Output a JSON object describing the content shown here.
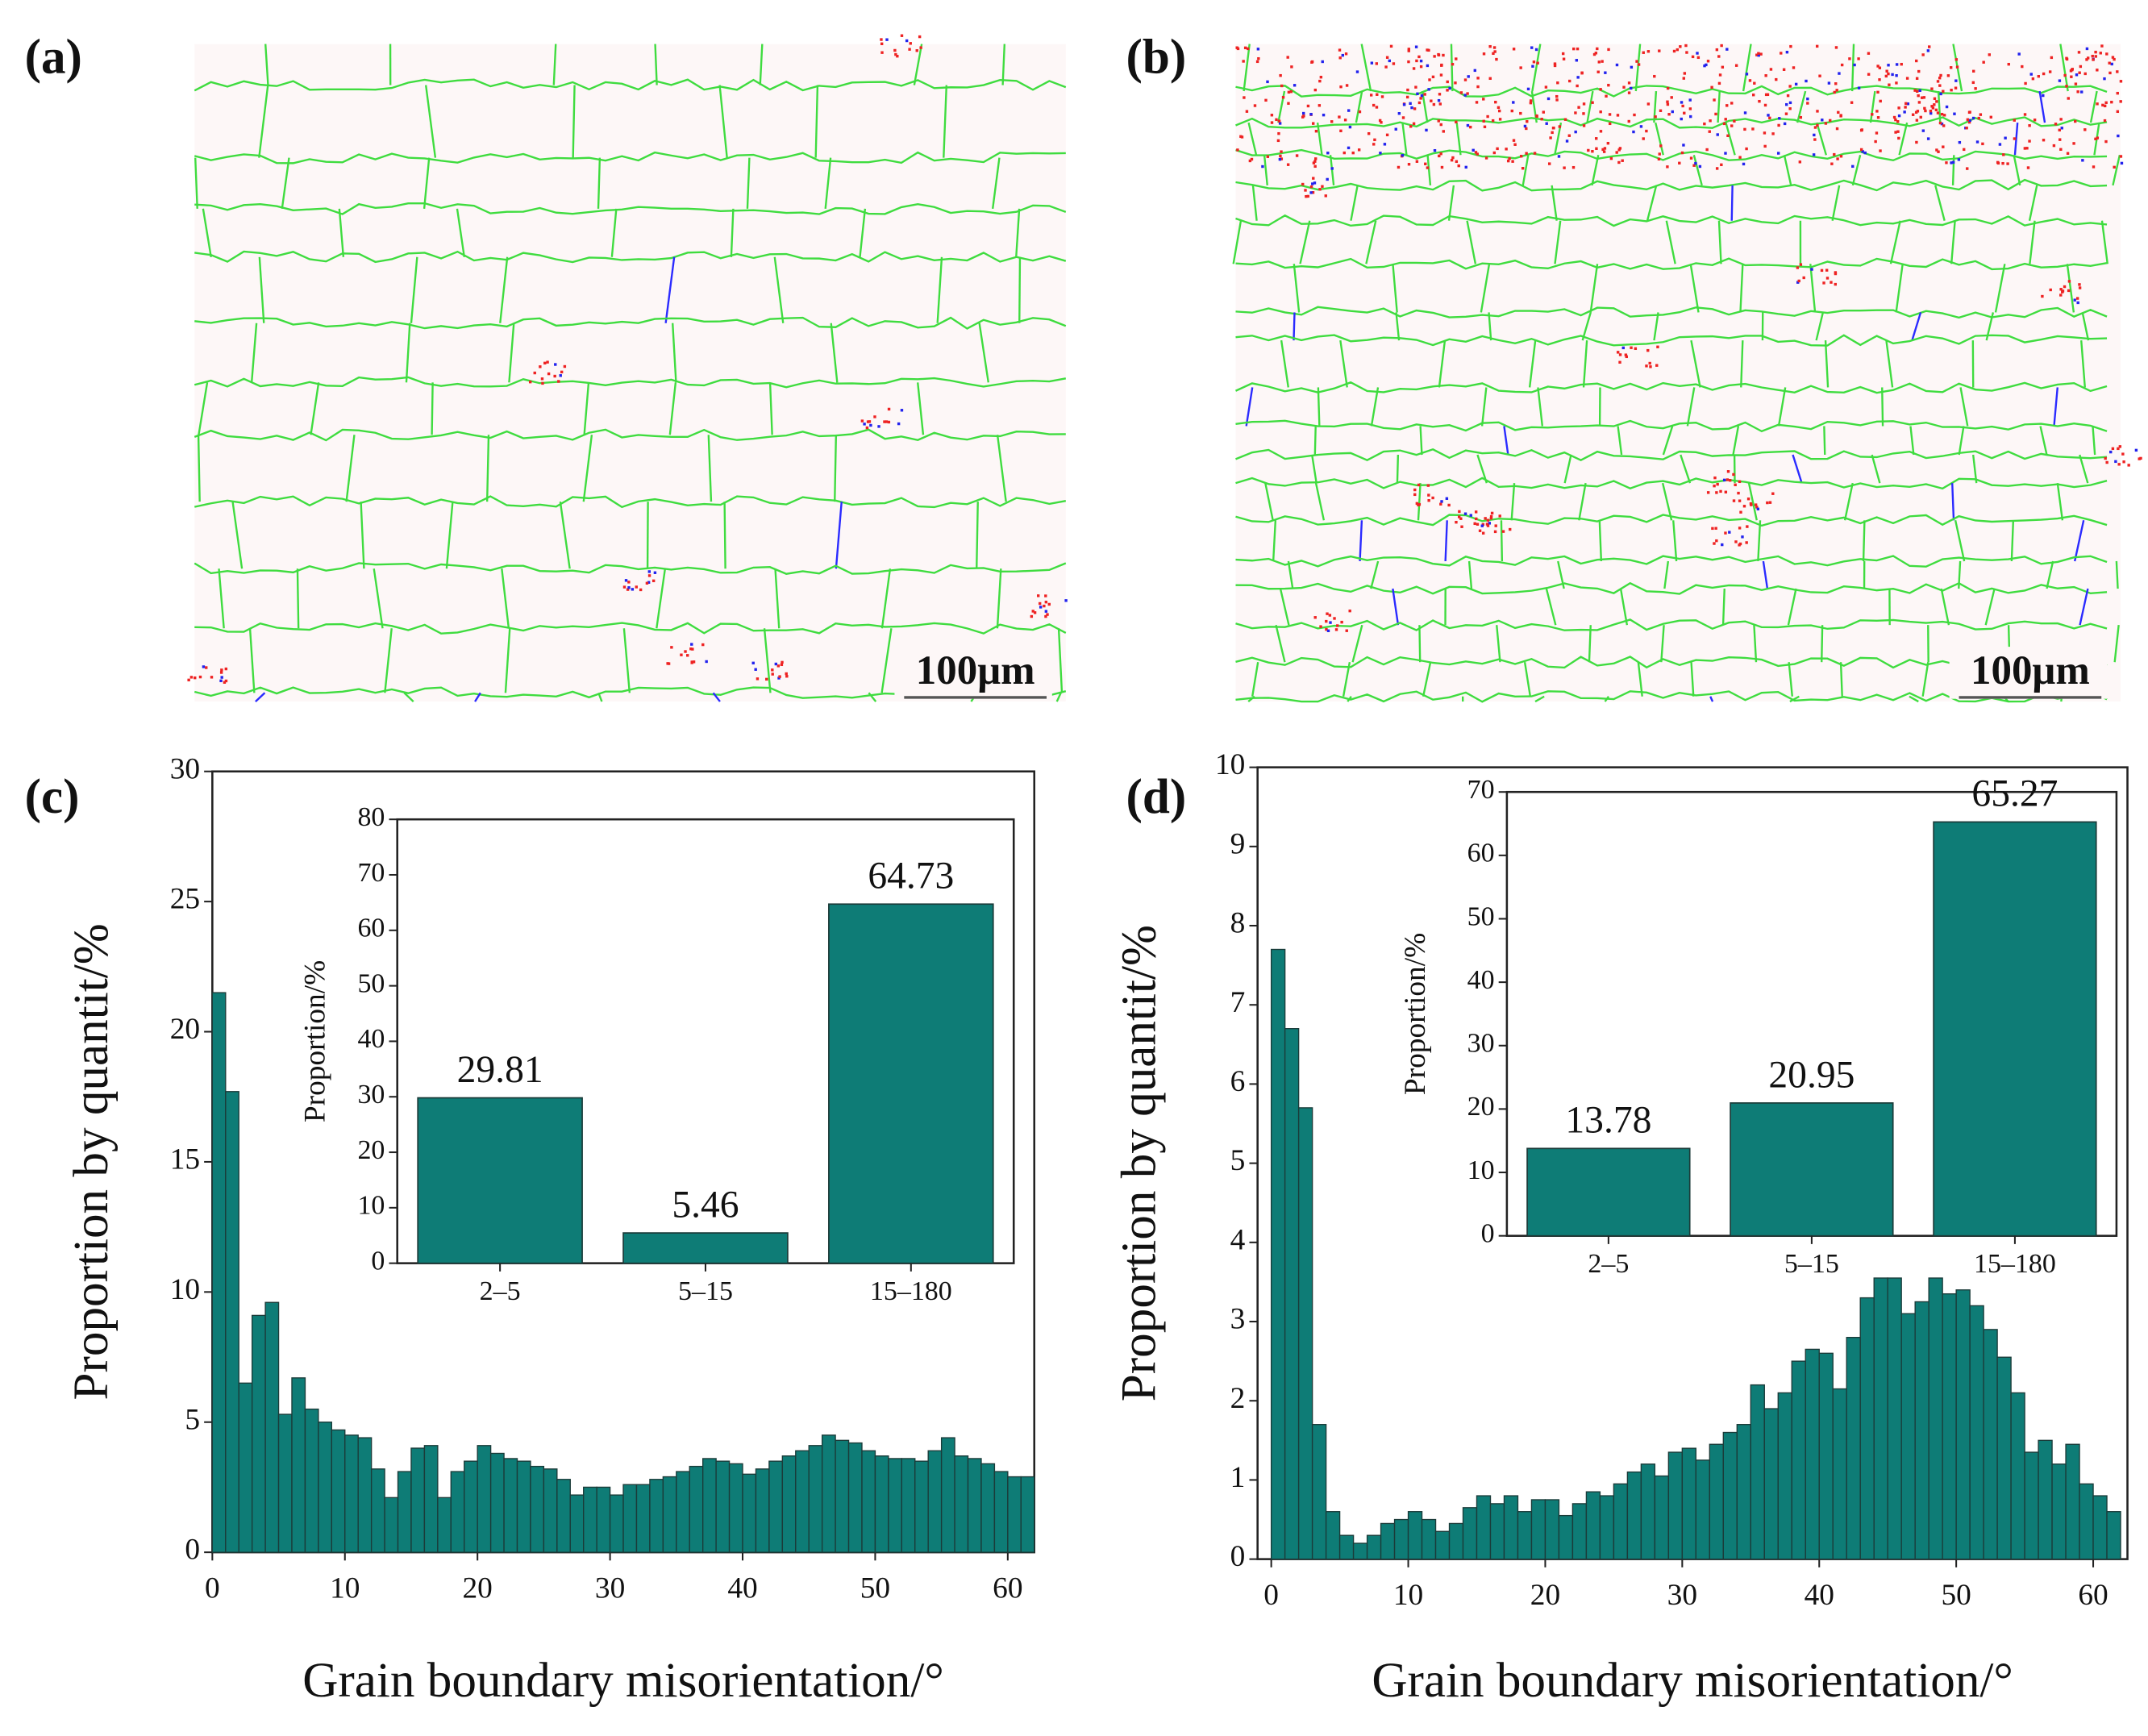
{
  "maps": [
    {
      "label": "(a)",
      "scale_bar": "100μm"
    },
    {
      "label": "(b)",
      "scale_bar": "100μm"
    }
  ],
  "chart_data": [
    {
      "type": "histogram",
      "panel_label": "(c)",
      "xlabel": "Grain boundary misorientation/°",
      "ylabel": "Proportion by quantit/%",
      "bins": [
        0,
        1,
        2,
        3,
        4,
        5,
        6,
        7,
        8,
        9,
        10,
        11,
        12,
        13,
        14,
        15,
        16,
        17,
        18,
        19,
        20,
        21,
        22,
        23,
        24,
        25,
        26,
        27,
        28,
        29,
        30,
        31,
        32,
        33,
        34,
        35,
        36,
        37,
        38,
        39,
        40,
        41,
        42,
        43,
        44,
        45,
        46,
        47,
        48,
        49,
        50,
        51,
        52,
        53,
        54,
        55,
        56,
        57,
        58,
        59,
        60,
        61,
        62
      ],
      "values": [
        21.5,
        17.7,
        6.5,
        9.1,
        9.6,
        5.3,
        6.7,
        5.5,
        5.0,
        4.7,
        4.5,
        4.4,
        3.2,
        2.1,
        3.1,
        4.0,
        4.1,
        2.1,
        3.1,
        3.5,
        4.1,
        3.8,
        3.6,
        3.5,
        3.3,
        3.2,
        2.8,
        2.2,
        2.5,
        2.5,
        2.2,
        2.6,
        2.6,
        2.8,
        2.9,
        3.1,
        3.3,
        3.6,
        3.5,
        3.4,
        3.0,
        3.2,
        3.5,
        3.7,
        3.9,
        4.1,
        4.5,
        4.3,
        4.2,
        3.9,
        3.7,
        3.6,
        3.6,
        3.5,
        3.9,
        4.4,
        3.7,
        3.6,
        3.4,
        3.1,
        2.9,
        2.9
      ],
      "xlim": [
        0,
        62
      ],
      "ylim": [
        0,
        30
      ],
      "xticks": [
        0,
        10,
        20,
        30,
        40,
        50,
        60
      ],
      "yticks": [
        0,
        5,
        10,
        15,
        20,
        25,
        30
      ],
      "color": "#0e7c76"
    },
    {
      "type": "bar",
      "ylabel": "Proportion/%",
      "categories": [
        "2–5",
        "5–15",
        "15–180"
      ],
      "values": [
        29.81,
        5.46,
        64.73
      ],
      "ylim": [
        0,
        80
      ],
      "yticks": [
        0,
        10,
        20,
        30,
        40,
        50,
        60,
        70,
        80
      ],
      "color": "#0e7c76"
    },
    {
      "type": "histogram",
      "panel_label": "(d)",
      "xlabel": "Grain boundary misorientation/°",
      "ylabel": "Proportion by quantit/%",
      "bins": [
        0,
        1,
        2,
        3,
        4,
        5,
        6,
        7,
        8,
        9,
        10,
        11,
        12,
        13,
        14,
        15,
        16,
        17,
        18,
        19,
        20,
        21,
        22,
        23,
        24,
        25,
        26,
        27,
        28,
        29,
        30,
        31,
        32,
        33,
        34,
        35,
        36,
        37,
        38,
        39,
        40,
        41,
        42,
        43,
        44,
        45,
        46,
        47,
        48,
        49,
        50,
        51,
        52,
        53,
        54,
        55,
        56,
        57,
        58,
        59,
        60,
        61,
        62
      ],
      "values": [
        7.7,
        6.7,
        5.7,
        1.7,
        0.6,
        0.3,
        0.2,
        0.3,
        0.45,
        0.5,
        0.6,
        0.5,
        0.35,
        0.45,
        0.65,
        0.8,
        0.7,
        0.8,
        0.6,
        0.75,
        0.75,
        0.55,
        0.7,
        0.85,
        0.8,
        0.95,
        1.1,
        1.2,
        1.05,
        1.35,
        1.4,
        1.25,
        1.45,
        1.6,
        1.7,
        2.2,
        1.9,
        2.1,
        2.5,
        2.65,
        2.6,
        2.15,
        2.8,
        3.3,
        3.55,
        3.55,
        3.1,
        3.25,
        3.55,
        3.35,
        3.4,
        3.2,
        2.9,
        2.55,
        2.1,
        1.35,
        1.5,
        1.2,
        1.45,
        0.95,
        0.8,
        0.6
      ],
      "xlim": [
        -1,
        62.5
      ],
      "ylim": [
        0,
        10
      ],
      "xticks": [
        0,
        10,
        20,
        30,
        40,
        50,
        60
      ],
      "yticks": [
        0,
        1,
        2,
        3,
        4,
        5,
        6,
        7,
        8,
        9,
        10
      ],
      "color": "#0e7c76"
    },
    {
      "type": "bar",
      "ylabel": "Proportion/%",
      "categories": [
        "2–5",
        "5–15",
        "15–180"
      ],
      "values": [
        13.78,
        20.95,
        65.27
      ],
      "ylim": [
        0,
        70
      ],
      "yticks": [
        0,
        10,
        20,
        30,
        40,
        50,
        60,
        70
      ],
      "color": "#0e7c76"
    }
  ]
}
